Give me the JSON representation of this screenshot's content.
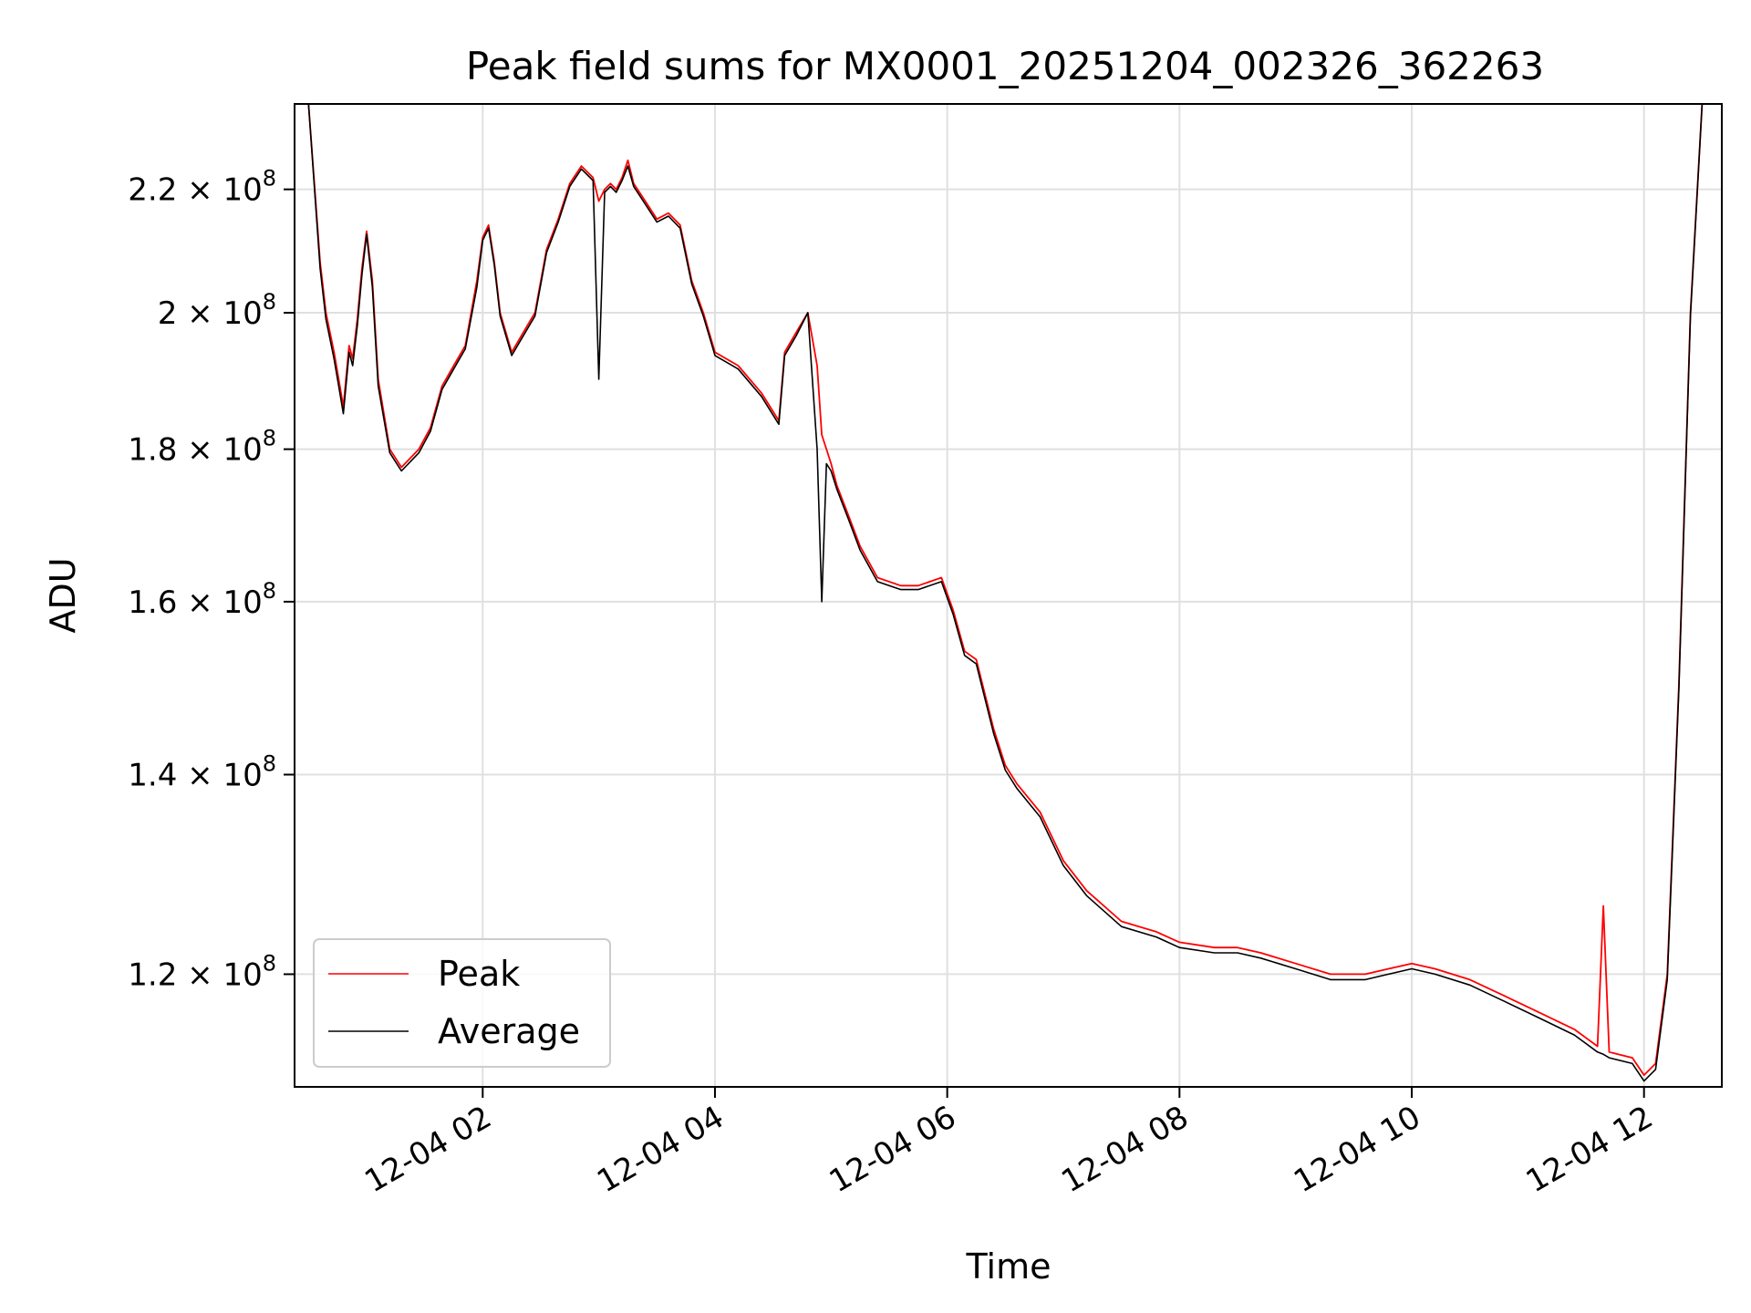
{
  "chart_data": {
    "type": "line",
    "title": "Peak field sums for MX0001_20251204_002326_362263",
    "xlabel": "Time",
    "ylabel": "ADU",
    "y_scale": "log",
    "xlim_hours": [
      0.38,
      12.67
    ],
    "ylim": [
      110000000,
      235000000
    ],
    "grid": true,
    "legend_position": "lower-left",
    "x_ticks": [
      {
        "hour": 2,
        "label": "12-04 02"
      },
      {
        "hour": 4,
        "label": "12-04 04"
      },
      {
        "hour": 6,
        "label": "12-04 06"
      },
      {
        "hour": 8,
        "label": "12-04 08"
      },
      {
        "hour": 10,
        "label": "12-04 10"
      },
      {
        "hour": 12,
        "label": "12-04 12"
      }
    ],
    "y_ticks": [
      {
        "value": 120000000,
        "mantissa": "1.2",
        "exponent": "8"
      },
      {
        "value": 140000000,
        "mantissa": "1.4",
        "exponent": "8"
      },
      {
        "value": 160000000,
        "mantissa": "1.6",
        "exponent": "8"
      },
      {
        "value": 180000000,
        "mantissa": "1.8",
        "exponent": "8"
      },
      {
        "value": 200000000,
        "mantissa": "2",
        "exponent": "8"
      },
      {
        "value": 220000000,
        "mantissa": "2.2",
        "exponent": "8"
      }
    ],
    "series": [
      {
        "name": "Peak",
        "color": "#ff0000",
        "hours": [
          0.38,
          0.5,
          0.6,
          0.65,
          0.72,
          0.76,
          0.8,
          0.85,
          0.88,
          0.92,
          0.96,
          1.0,
          1.05,
          1.1,
          1.2,
          1.3,
          1.45,
          1.55,
          1.65,
          1.75,
          1.85,
          1.95,
          2.0,
          2.05,
          2.1,
          2.15,
          2.25,
          2.35,
          2.45,
          2.55,
          2.65,
          2.75,
          2.85,
          2.95,
          3.0,
          3.05,
          3.1,
          3.15,
          3.2,
          3.25,
          3.3,
          3.4,
          3.5,
          3.6,
          3.7,
          3.8,
          3.9,
          4.0,
          4.2,
          4.4,
          4.55,
          4.6,
          4.7,
          4.8,
          4.88,
          4.92,
          4.96,
          5.0,
          5.05,
          5.15,
          5.25,
          5.4,
          5.6,
          5.75,
          5.95,
          6.05,
          6.15,
          6.25,
          6.4,
          6.5,
          6.6,
          6.8,
          7.0,
          7.2,
          7.5,
          7.8,
          8.0,
          8.3,
          8.5,
          8.7,
          9.0,
          9.3,
          9.6,
          9.8,
          10.0,
          10.2,
          10.5,
          10.8,
          11.1,
          11.4,
          11.6,
          11.65,
          11.7,
          11.9,
          12.0,
          12.1,
          12.2,
          12.3,
          12.4,
          12.5
        ],
        "values": [
          235000000,
          235000000,
          208000000,
          200000000,
          194000000,
          190000000,
          186000000,
          195000000,
          193000000,
          199000000,
          207000000,
          213000000,
          205000000,
          190000000,
          180000000,
          177500000,
          180000000,
          183000000,
          189000000,
          192000000,
          195000000,
          205000000,
          212000000,
          214000000,
          208000000,
          200000000,
          194000000,
          197000000,
          200000000,
          210000000,
          215000000,
          221000000,
          224000000,
          222000000,
          218000000,
          220000000,
          221000000,
          220000000,
          222000000,
          225000000,
          221000000,
          218000000,
          215000000,
          216000000,
          214000000,
          205000000,
          200000000,
          194000000,
          192000000,
          188000000,
          184000000,
          194000000,
          197000000,
          200000000,
          192000000,
          182000000,
          180000000,
          178000000,
          175000000,
          171000000,
          167000000,
          163000000,
          162000000,
          162000000,
          163000000,
          159000000,
          154000000,
          153000000,
          145000000,
          141000000,
          139000000,
          136000000,
          131000000,
          128000000,
          125000000,
          124000000,
          123000000,
          122500000,
          122500000,
          122000000,
          121000000,
          120000000,
          120000000,
          120500000,
          121000000,
          120500000,
          119500000,
          118000000,
          116500000,
          115000000,
          113500000,
          126500000,
          113000000,
          112500000,
          111000000,
          112000000,
          120000000,
          150000000,
          200000000,
          235000000
        ]
      },
      {
        "name": "Average",
        "color": "#000000",
        "hours": [
          0.38,
          0.5,
          0.6,
          0.65,
          0.72,
          0.76,
          0.8,
          0.85,
          0.88,
          0.92,
          0.96,
          1.0,
          1.05,
          1.1,
          1.2,
          1.3,
          1.45,
          1.55,
          1.65,
          1.75,
          1.85,
          1.95,
          2.0,
          2.05,
          2.1,
          2.15,
          2.25,
          2.35,
          2.45,
          2.55,
          2.65,
          2.75,
          2.85,
          2.95,
          3.0,
          3.05,
          3.1,
          3.15,
          3.2,
          3.25,
          3.3,
          3.4,
          3.5,
          3.6,
          3.7,
          3.8,
          3.9,
          4.0,
          4.2,
          4.4,
          4.55,
          4.6,
          4.7,
          4.8,
          4.88,
          4.92,
          4.96,
          5.0,
          5.05,
          5.15,
          5.25,
          5.4,
          5.6,
          5.75,
          5.95,
          6.05,
          6.15,
          6.25,
          6.4,
          6.5,
          6.6,
          6.8,
          7.0,
          7.2,
          7.5,
          7.8,
          8.0,
          8.3,
          8.5,
          8.7,
          9.0,
          9.3,
          9.6,
          9.8,
          10.0,
          10.2,
          10.5,
          10.8,
          11.1,
          11.4,
          11.6,
          11.65,
          11.7,
          11.9,
          12.0,
          12.1,
          12.2,
          12.3,
          12.4,
          12.5
        ],
        "values": [
          235000000,
          235000000,
          207000000,
          199000000,
          193000000,
          189000000,
          185000000,
          194000000,
          192000000,
          198000000,
          206000000,
          212500000,
          204000000,
          189000000,
          179500000,
          177000000,
          179500000,
          182500000,
          188500000,
          191500000,
          194500000,
          204000000,
          211500000,
          213500000,
          207500000,
          199500000,
          193500000,
          196500000,
          199500000,
          209500000,
          214500000,
          220500000,
          223500000,
          221500000,
          190000000,
          219500000,
          220500000,
          219500000,
          221500000,
          224000000,
          220500000,
          217500000,
          214500000,
          215500000,
          213500000,
          204500000,
          199500000,
          193500000,
          191500000,
          187500000,
          183500000,
          193500000,
          196500000,
          200000000,
          180000000,
          160000000,
          178000000,
          177000000,
          174500000,
          170500000,
          166500000,
          162500000,
          161500000,
          161500000,
          162500000,
          158500000,
          153500000,
          152500000,
          144500000,
          140500000,
          138500000,
          135500000,
          130500000,
          127500000,
          124500000,
          123500000,
          122500000,
          122000000,
          122000000,
          121500000,
          120500000,
          119500000,
          119500000,
          120000000,
          120500000,
          120000000,
          119000000,
          117500000,
          116000000,
          114500000,
          113000000,
          112800000,
          112500000,
          112000000,
          110500000,
          111500000,
          119500000,
          149500000,
          199500000,
          235000000
        ]
      }
    ]
  }
}
